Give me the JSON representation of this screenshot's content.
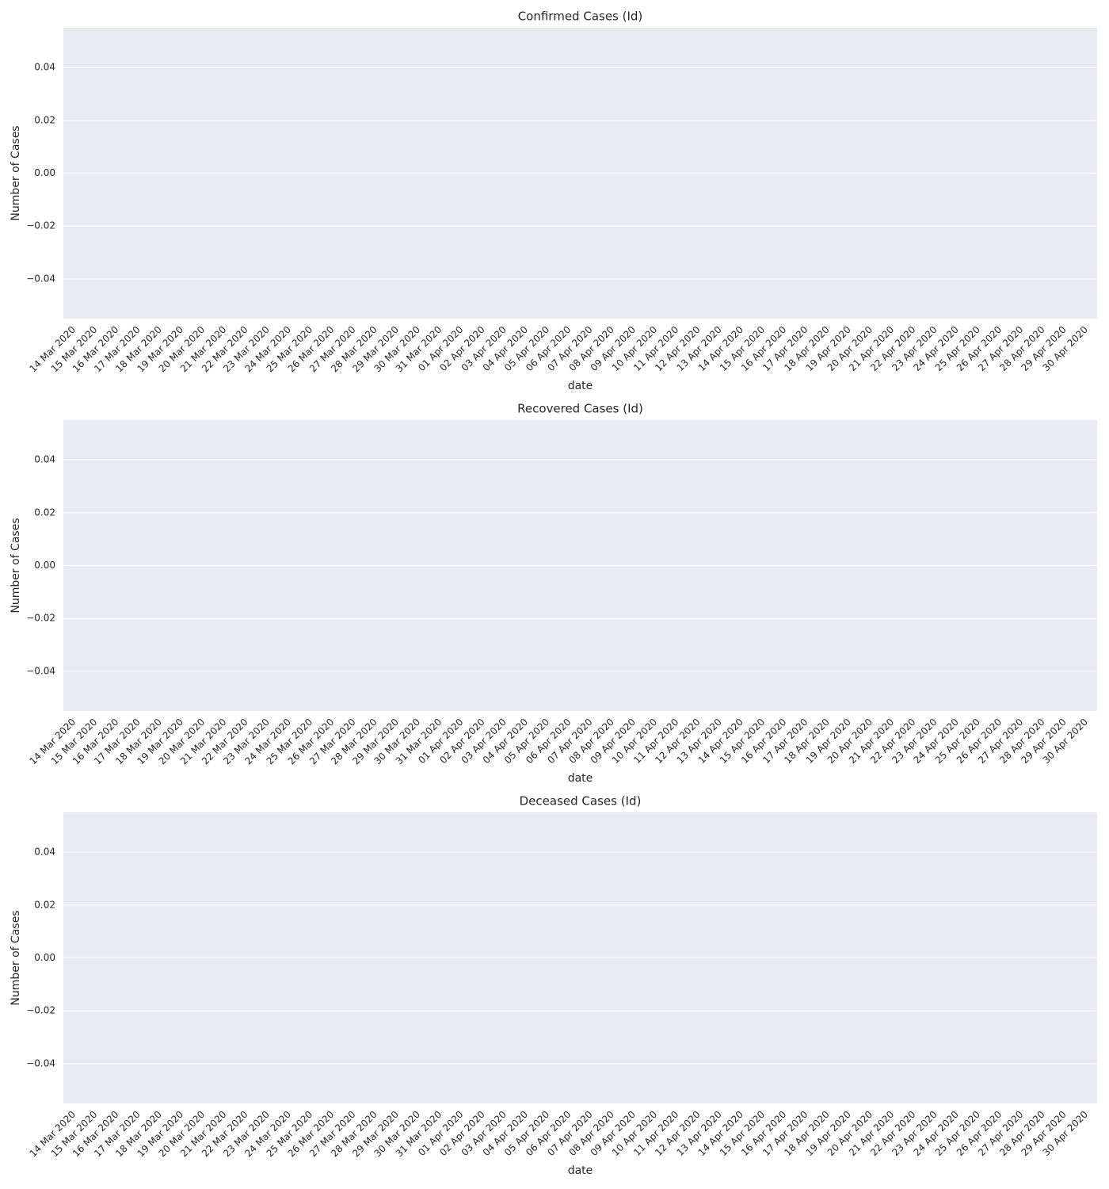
{
  "chart_data": [
    {
      "type": "bar",
      "title": "Confirmed Cases (Id)",
      "xlabel": "date",
      "ylabel": "Number of Cases",
      "categories": [
        "14 Mar 2020",
        "15 Mar 2020",
        "16 Mar 2020",
        "17 Mar 2020",
        "18 Mar 2020",
        "19 Mar 2020",
        "20 Mar 2020",
        "21 Mar 2020",
        "22 Mar 2020",
        "23 Mar 2020",
        "24 Mar 2020",
        "25 Mar 2020",
        "26 Mar 2020",
        "27 Mar 2020",
        "28 Mar 2020",
        "29 Mar 2020",
        "30 Mar 2020",
        "31 Mar 2020",
        "01 Apr 2020",
        "02 Apr 2020",
        "03 Apr 2020",
        "04 Apr 2020",
        "05 Apr 2020",
        "06 Apr 2020",
        "07 Apr 2020",
        "08 Apr 2020",
        "09 Apr 2020",
        "10 Apr 2020",
        "11 Apr 2020",
        "12 Apr 2020",
        "13 Apr 2020",
        "14 Apr 2020",
        "15 Apr 2020",
        "16 Apr 2020",
        "17 Apr 2020",
        "18 Apr 2020",
        "19 Apr 2020",
        "20 Apr 2020",
        "21 Apr 2020",
        "22 Apr 2020",
        "23 Apr 2020",
        "24 Apr 2020",
        "25 Apr 2020",
        "26 Apr 2020",
        "27 Apr 2020",
        "28 Apr 2020",
        "29 Apr 2020",
        "30 Apr 2020"
      ],
      "values": [
        0,
        0,
        0,
        0,
        0,
        0,
        0,
        0,
        0,
        0,
        0,
        0,
        0,
        0,
        0,
        0,
        0,
        0,
        0,
        0,
        0,
        0,
        0,
        0,
        0,
        0,
        0,
        0,
        0,
        0,
        0,
        0,
        0,
        0,
        0,
        0,
        0,
        0,
        0,
        0,
        0,
        0,
        0,
        0,
        0,
        0,
        0,
        0
      ],
      "ylim": [
        -0.055,
        0.055
      ],
      "yticks": [
        {
          "value": -0.04,
          "label": "−0.04"
        },
        {
          "value": -0.02,
          "label": "−0.02"
        },
        {
          "value": 0,
          "label": "0.00"
        },
        {
          "value": 0.02,
          "label": "0.02"
        },
        {
          "value": 0.04,
          "label": "0.04"
        }
      ],
      "grid": true
    },
    {
      "type": "bar",
      "title": "Recovered Cases (Id)",
      "xlabel": "date",
      "ylabel": "Number of Cases",
      "categories": [
        "14 Mar 2020",
        "15 Mar 2020",
        "16 Mar 2020",
        "17 Mar 2020",
        "18 Mar 2020",
        "19 Mar 2020",
        "20 Mar 2020",
        "21 Mar 2020",
        "22 Mar 2020",
        "23 Mar 2020",
        "24 Mar 2020",
        "25 Mar 2020",
        "26 Mar 2020",
        "27 Mar 2020",
        "28 Mar 2020",
        "29 Mar 2020",
        "30 Mar 2020",
        "31 Mar 2020",
        "01 Apr 2020",
        "02 Apr 2020",
        "03 Apr 2020",
        "04 Apr 2020",
        "05 Apr 2020",
        "06 Apr 2020",
        "07 Apr 2020",
        "08 Apr 2020",
        "09 Apr 2020",
        "10 Apr 2020",
        "11 Apr 2020",
        "12 Apr 2020",
        "13 Apr 2020",
        "14 Apr 2020",
        "15 Apr 2020",
        "16 Apr 2020",
        "17 Apr 2020",
        "18 Apr 2020",
        "19 Apr 2020",
        "20 Apr 2020",
        "21 Apr 2020",
        "22 Apr 2020",
        "23 Apr 2020",
        "24 Apr 2020",
        "25 Apr 2020",
        "26 Apr 2020",
        "27 Apr 2020",
        "28 Apr 2020",
        "29 Apr 2020",
        "30 Apr 2020"
      ],
      "values": [
        0,
        0,
        0,
        0,
        0,
        0,
        0,
        0,
        0,
        0,
        0,
        0,
        0,
        0,
        0,
        0,
        0,
        0,
        0,
        0,
        0,
        0,
        0,
        0,
        0,
        0,
        0,
        0,
        0,
        0,
        0,
        0,
        0,
        0,
        0,
        0,
        0,
        0,
        0,
        0,
        0,
        0,
        0,
        0,
        0,
        0,
        0,
        0
      ],
      "ylim": [
        -0.055,
        0.055
      ],
      "yticks": [
        {
          "value": -0.04,
          "label": "−0.04"
        },
        {
          "value": -0.02,
          "label": "−0.02"
        },
        {
          "value": 0,
          "label": "0.00"
        },
        {
          "value": 0.02,
          "label": "0.02"
        },
        {
          "value": 0.04,
          "label": "0.04"
        }
      ],
      "grid": true
    },
    {
      "type": "bar",
      "title": "Deceased Cases (Id)",
      "xlabel": "date",
      "ylabel": "Number of Cases",
      "categories": [
        "14 Mar 2020",
        "15 Mar 2020",
        "16 Mar 2020",
        "17 Mar 2020",
        "18 Mar 2020",
        "19 Mar 2020",
        "20 Mar 2020",
        "21 Mar 2020",
        "22 Mar 2020",
        "23 Mar 2020",
        "24 Mar 2020",
        "25 Mar 2020",
        "26 Mar 2020",
        "27 Mar 2020",
        "28 Mar 2020",
        "29 Mar 2020",
        "30 Mar 2020",
        "31 Mar 2020",
        "01 Apr 2020",
        "02 Apr 2020",
        "03 Apr 2020",
        "04 Apr 2020",
        "05 Apr 2020",
        "06 Apr 2020",
        "07 Apr 2020",
        "08 Apr 2020",
        "09 Apr 2020",
        "10 Apr 2020",
        "11 Apr 2020",
        "12 Apr 2020",
        "13 Apr 2020",
        "14 Apr 2020",
        "15 Apr 2020",
        "16 Apr 2020",
        "17 Apr 2020",
        "18 Apr 2020",
        "19 Apr 2020",
        "20 Apr 2020",
        "21 Apr 2020",
        "22 Apr 2020",
        "23 Apr 2020",
        "24 Apr 2020",
        "25 Apr 2020",
        "26 Apr 2020",
        "27 Apr 2020",
        "28 Apr 2020",
        "29 Apr 2020",
        "30 Apr 2020"
      ],
      "values": [
        0,
        0,
        0,
        0,
        0,
        0,
        0,
        0,
        0,
        0,
        0,
        0,
        0,
        0,
        0,
        0,
        0,
        0,
        0,
        0,
        0,
        0,
        0,
        0,
        0,
        0,
        0,
        0,
        0,
        0,
        0,
        0,
        0,
        0,
        0,
        0,
        0,
        0,
        0,
        0,
        0,
        0,
        0,
        0,
        0,
        0,
        0,
        0
      ],
      "ylim": [
        -0.055,
        0.055
      ],
      "yticks": [
        {
          "value": -0.04,
          "label": "−0.04"
        },
        {
          "value": -0.02,
          "label": "−0.02"
        },
        {
          "value": 0,
          "label": "0.00"
        },
        {
          "value": 0.02,
          "label": "0.02"
        },
        {
          "value": 0.04,
          "label": "0.04"
        }
      ],
      "grid": true
    }
  ]
}
